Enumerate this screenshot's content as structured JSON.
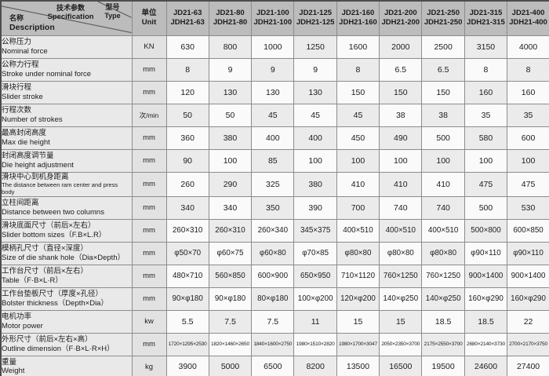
{
  "corner": {
    "spec_zh": "技术参数",
    "spec_en": "Specification",
    "type_zh": "型号",
    "type_en": "Type",
    "name_zh": "名称",
    "name_en": "Description"
  },
  "unit_header": {
    "zh": "单位",
    "en": "Unit"
  },
  "models": [
    {
      "jd": "JD21-63",
      "jdh": "JDH21-63"
    },
    {
      "jd": "JD21-80",
      "jdh": "JDH21-80"
    },
    {
      "jd": "JD21-100",
      "jdh": "JDH21-100"
    },
    {
      "jd": "JD21-125",
      "jdh": "JDH21-125"
    },
    {
      "jd": "JD21-160",
      "jdh": "JDH21-160"
    },
    {
      "jd": "JD21-200",
      "jdh": "JDH21-200"
    },
    {
      "jd": "JD21-250",
      "jdh": "JDH21-250"
    },
    {
      "jd": "JD21-315",
      "jdh": "JDH21-315"
    },
    {
      "jd": "JD21-400",
      "jdh": "JDH21-400"
    }
  ],
  "rows": [
    {
      "label_zh": "公称压力",
      "label_en": "Nominal force",
      "unit": "KN",
      "values": [
        "630",
        "800",
        "1000",
        "1250",
        "1600",
        "2000",
        "2500",
        "3150",
        "4000"
      ]
    },
    {
      "label_zh": "公称力行程",
      "label_en": "Stroke under nominal force",
      "unit": "mm",
      "values": [
        "8",
        "9",
        "9",
        "9",
        "8",
        "6.5",
        "6.5",
        "8",
        "8"
      ]
    },
    {
      "label_zh": "滑块行程",
      "label_en": "Slider stroke",
      "unit": "mm",
      "values": [
        "120",
        "130",
        "130",
        "130",
        "150",
        "150",
        "150",
        "160",
        "160"
      ]
    },
    {
      "label_zh": "行程次数",
      "label_en": "Number of strokes",
      "unit": "次/min",
      "values": [
        "50",
        "50",
        "45",
        "45",
        "45",
        "38",
        "38",
        "35",
        "35"
      ]
    },
    {
      "label_zh": "最高封闭高度",
      "label_en": "Max die height",
      "unit": "mm",
      "values": [
        "360",
        "380",
        "400",
        "400",
        "450",
        "490",
        "500",
        "580",
        "600"
      ]
    },
    {
      "label_zh": "封闭高度调节量",
      "label_en": "Die height adjustment",
      "unit": "mm",
      "values": [
        "90",
        "100",
        "85",
        "100",
        "100",
        "100",
        "100",
        "100",
        "100"
      ]
    },
    {
      "label_zh": "滑块中心到机身距离",
      "label_en": "The distance between ram center and press body",
      "unit": "mm",
      "values": [
        "260",
        "290",
        "325",
        "380",
        "410",
        "410",
        "410",
        "475",
        "475"
      ]
    },
    {
      "label_zh": "立柱间距离",
      "label_en": "Distance between two columns",
      "unit": "mm",
      "values": [
        "340",
        "340",
        "350",
        "390",
        "700",
        "740",
        "740",
        "500",
        "530"
      ]
    },
    {
      "label_zh": "滑块底面尺寸（前后×左右）",
      "label_en": "Slider bottom sizes（F.B×L.R）",
      "unit": "mm",
      "values": [
        "260×310",
        "260×310",
        "260×340",
        "345×375",
        "400×510",
        "400×510",
        "400×510",
        "500×800",
        "600×850"
      ]
    },
    {
      "label_zh": "模柄孔尺寸（直径×深度）",
      "label_en": "Size of die shank hole（Dia×Depth）",
      "unit": "mm",
      "values": [
        "φ50×70",
        "φ60×75",
        "φ60×80",
        "φ70×85",
        "φ80×80",
        "φ80×80",
        "φ80×80",
        "φ90×110",
        "φ90×110"
      ]
    },
    {
      "label_zh": "工作台尺寸（前后×左右）",
      "label_en": "Table（F·B×L·R）",
      "unit": "mm",
      "values": [
        "480×710",
        "560×850",
        "600×900",
        "650×950",
        "710×1120",
        "760×1250",
        "760×1250",
        "900×1400",
        "900×1400"
      ]
    },
    {
      "label_zh": "工作台垫板尺寸（厚度×孔径）",
      "label_en": "Bolster thickness（Depth×Dia）",
      "unit": "mm",
      "values": [
        "90×φ180",
        "90×φ180",
        "80×φ180",
        "100×φ200",
        "120×φ200",
        "140×φ250",
        "140×φ250",
        "160×φ290",
        "160×φ290"
      ]
    },
    {
      "label_zh": "电机功率",
      "label_en": "Motor power",
      "unit": "kw",
      "values": [
        "5.5",
        "7.5",
        "7.5",
        "11",
        "15",
        "15",
        "18.5",
        "18.5",
        "22"
      ]
    },
    {
      "label_zh": "外形尺寸（前后×左右×高）",
      "label_en": "Outline dimension（F·B×L·R×H）",
      "unit": "mm",
      "values": [
        "1720×1295×2530",
        "1820×1460×2650",
        "1840×1600×2750",
        "1980×1510×2820",
        "1980×1700×3047",
        "2050×2350×3700",
        "2175×2550×3700",
        "2680×2140×3730",
        "2700×2170×3750"
      ]
    },
    {
      "label_zh": "重量",
      "label_en": "Weight",
      "unit": "kg",
      "values": [
        "3900",
        "5000",
        "6500",
        "8200",
        "13500",
        "16500",
        "19500",
        "24600",
        "27400"
      ]
    }
  ],
  "colors": {
    "header_bg": "#bcbcbc",
    "label_bg": "#e9e9e9",
    "unit_bg": "#e2e2e2",
    "cell_bg": "#fafafa",
    "cell_alt_bg": "#ebebeb",
    "border": "#8c8c8c",
    "outer_border": "#4d4d4d",
    "text": "#1c1c1c"
  }
}
